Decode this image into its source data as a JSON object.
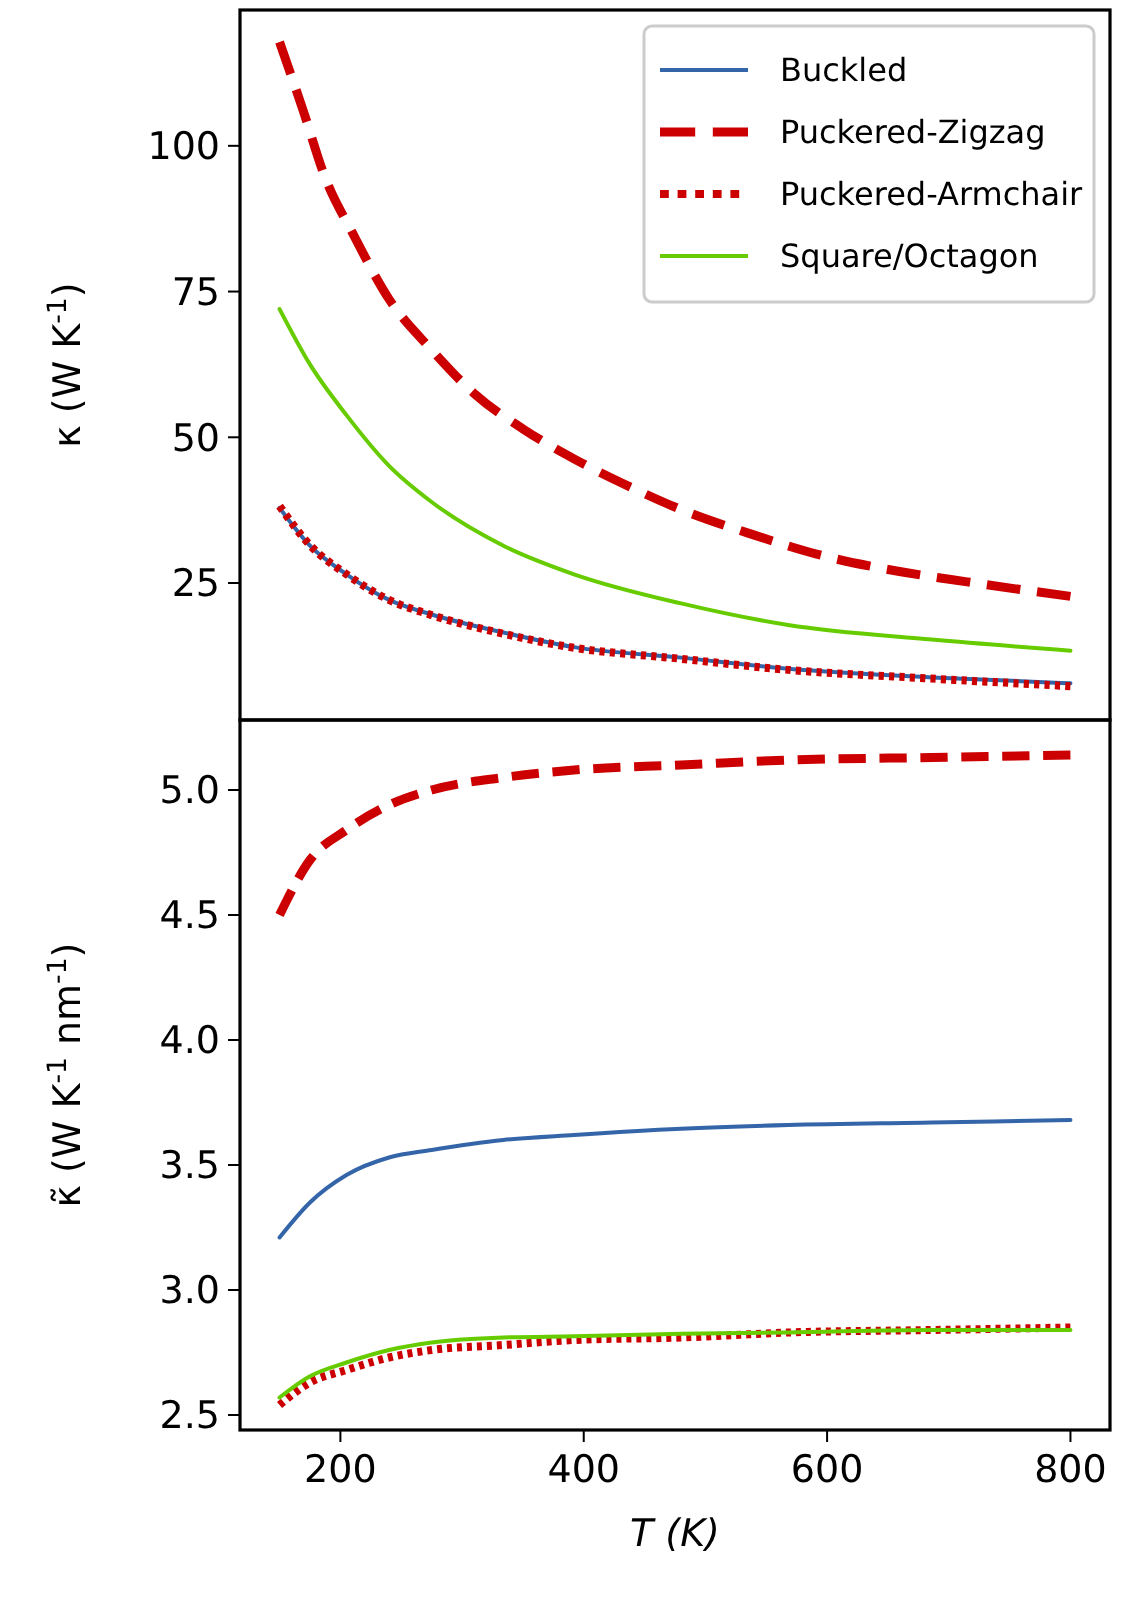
{
  "chart_data": [
    {
      "type": "line",
      "ylabel": "κ (W K$^{-1}$)",
      "xlim": [
        117.5,
        832.5
      ],
      "ylim": [
        1.5,
        123.3
      ],
      "yticks": [
        25,
        50,
        75,
        100
      ],
      "tick_labels": "y",
      "legend": "top right",
      "grid": false,
      "series": [
        {
          "name": "Buckled",
          "color": "#3465a8",
          "line_style": "solid",
          "x": [
            150,
            175,
            205,
            240,
            275,
            334,
            392,
            480,
            568,
            686,
            800
          ],
          "values": [
            37.9,
            31.4,
            26.5,
            22.1,
            19.6,
            16.5,
            14.0,
            12.2,
            10.3,
            8.8,
            7.8
          ]
        },
        {
          "name": "Puckered-Zigzag",
          "color": "#cc0000",
          "line_style": "dashed",
          "x": [
            150,
            169.5,
            187,
            210.6,
            240,
            275,
            310,
            351,
            392,
            439,
            480,
            539,
            598,
            656,
            715,
            800
          ],
          "values": [
            117.8,
            106.0,
            94.8,
            84.8,
            73.7,
            65.0,
            57.5,
            51.3,
            46.3,
            41.4,
            37.6,
            33.3,
            29.6,
            27.1,
            25.2,
            22.7
          ]
        },
        {
          "name": "Puckered-Armchair",
          "color": "#cc0000",
          "line_style": "dotted",
          "x": [
            150,
            175,
            205,
            240,
            275,
            334,
            392,
            480,
            568,
            686,
            800
          ],
          "values": [
            38.2,
            31.5,
            26.5,
            22.1,
            19.5,
            16.3,
            13.9,
            12.0,
            10.1,
            8.6,
            7.3
          ]
        },
        {
          "name": "Square/Octagon",
          "color": "#66cc00",
          "line_style": "solid",
          "x": [
            150,
            175,
            205,
            240,
            275,
            334,
            392,
            480,
            568,
            686,
            800
          ],
          "values": [
            72.0,
            62.5,
            53.8,
            45.1,
            38.9,
            31.4,
            26.5,
            21.5,
            17.8,
            15.3,
            13.4
          ]
        }
      ]
    },
    {
      "type": "line",
      "xlabel": "T (K)",
      "ylabel": "κ̃ (W K$^{-1}$ nm$^{-1}$)",
      "xlim": [
        117.5,
        832.5
      ],
      "ylim": [
        2.44,
        5.28
      ],
      "xticks": [
        200,
        400,
        600,
        800
      ],
      "yticks": [
        {
          "value": 2.5,
          "label": "2.5"
        },
        {
          "value": 3,
          "label": "3.0"
        },
        {
          "value": 3.5,
          "label": "3.5"
        },
        {
          "value": 4,
          "label": "4.0"
        },
        {
          "value": 4.5,
          "label": "4.5"
        },
        {
          "value": 5,
          "label": "5.0"
        }
      ],
      "grid": false,
      "series": [
        {
          "color": "#3465a8",
          "line_style": "solid",
          "x": [
            150,
            175,
            205,
            240,
            275,
            334,
            392,
            480,
            568,
            686,
            800
          ],
          "values": [
            3.21,
            3.35,
            3.46,
            3.53,
            3.56,
            3.6,
            3.62,
            3.645,
            3.66,
            3.67,
            3.68
          ]
        },
        {
          "color": "#cc0000",
          "line_style": "dashed",
          "x": [
            150,
            175,
            205,
            240,
            275,
            334,
            392,
            480,
            568,
            686,
            800
          ],
          "values": [
            4.5,
            4.72,
            4.84,
            4.94,
            5.0,
            5.05,
            5.08,
            5.1,
            5.12,
            5.13,
            5.14
          ]
        },
        {
          "color": "#cc0000",
          "line_style": "dotted",
          "x": [
            150,
            175,
            205,
            240,
            275,
            334,
            392,
            480,
            568,
            686,
            800
          ],
          "values": [
            2.54,
            2.63,
            2.68,
            2.73,
            2.76,
            2.78,
            2.8,
            2.81,
            2.83,
            2.84,
            2.85
          ]
        },
        {
          "color": "#66cc00",
          "line_style": "solid",
          "x": [
            150,
            175,
            205,
            240,
            275,
            334,
            392,
            480,
            568,
            686,
            800
          ],
          "values": [
            2.57,
            2.655,
            2.71,
            2.76,
            2.79,
            2.81,
            2.815,
            2.825,
            2.83,
            2.84,
            2.84
          ]
        }
      ]
    }
  ]
}
